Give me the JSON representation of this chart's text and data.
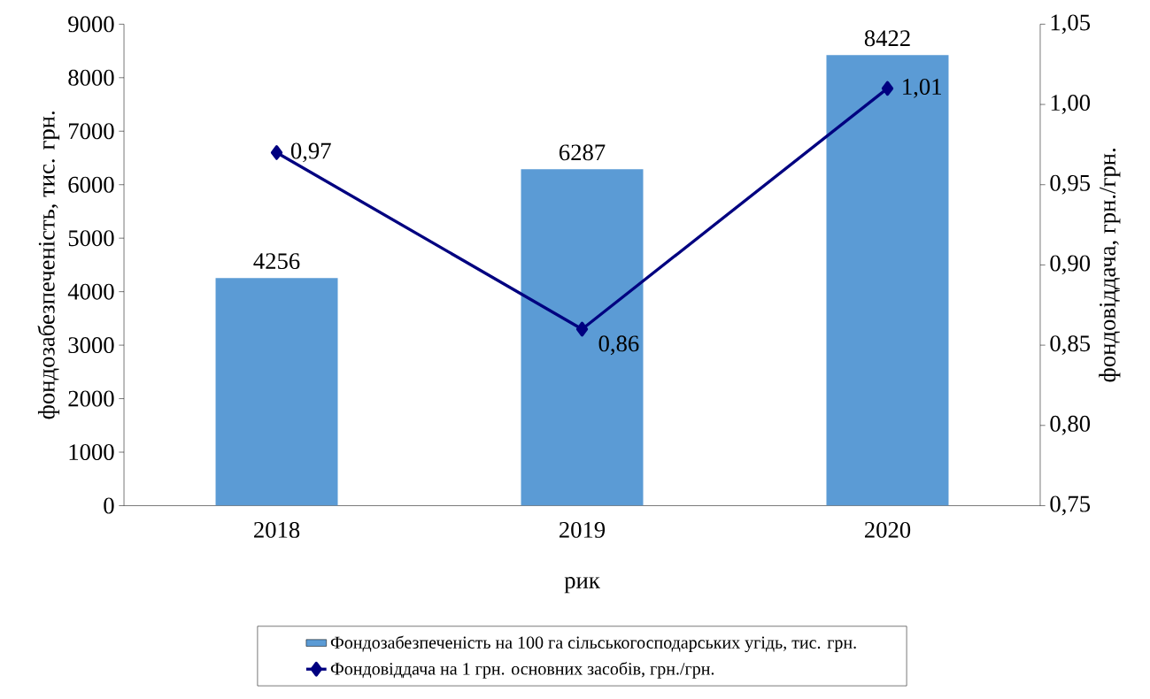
{
  "chart_data": {
    "type": "bar",
    "categories": [
      "2018",
      "2019",
      "2020"
    ],
    "xlabel": "рик",
    "ylabel": "фондозабезпеченість, тис. грн.",
    "y2label": "фондовіддача, грн./грн.",
    "series": [
      {
        "name": "Фондозабезпеченість на 100 га сільськогосподарських угідь, тис. грн.",
        "color": "#5b9bd5",
        "values": [
          4256,
          6287,
          8422
        ],
        "value_labels": [
          "4256",
          "6287",
          "8422"
        ]
      },
      {
        "name": "Фондовіддача на 1 грн. основних засобів, грн./грн.",
        "type": "line",
        "axis": "y2",
        "color": "#000080",
        "marker": "diamond",
        "values": [
          0.97,
          0.86,
          1.01
        ],
        "value_labels": [
          "0,97",
          "0,86",
          "1,01"
        ]
      }
    ],
    "ylim": [
      0,
      9000
    ],
    "yticks": [
      0,
      1000,
      2000,
      3000,
      4000,
      5000,
      6000,
      7000,
      8000,
      9000
    ],
    "y2lim": [
      0.75,
      1.05
    ],
    "y2ticks": [
      {
        "value": 0.75,
        "label": "0,75"
      },
      {
        "value": 0.8,
        "label": "0,80"
      },
      {
        "value": 0.85,
        "label": "0,85"
      },
      {
        "value": 0.9,
        "label": "0,90"
      },
      {
        "value": 0.95,
        "label": "0,95"
      },
      {
        "value": 1.0,
        "label": "1,00"
      },
      {
        "value": 1.05,
        "label": "1,05"
      }
    ],
    "legend": "bottom"
  }
}
